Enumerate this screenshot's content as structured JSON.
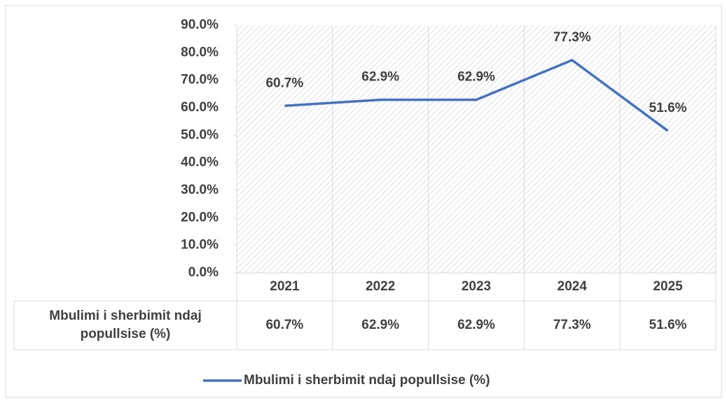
{
  "chart_data": {
    "type": "line",
    "categories": [
      "2021",
      "2022",
      "2023",
      "2024",
      "2025"
    ],
    "series": [
      {
        "name": "Mbulimi i sherbimit ndaj popullsise (%)",
        "color": "#4472c4",
        "values": [
          60.7,
          62.9,
          62.9,
          77.3,
          51.6
        ],
        "value_labels": [
          "60.7%",
          "62.9%",
          "62.9%",
          "77.3%",
          "51.6%"
        ]
      }
    ],
    "ylim": [
      0,
      90
    ],
    "yticks": [
      {
        "value": 0,
        "label": "0.0%"
      },
      {
        "value": 10,
        "label": "10.0%"
      },
      {
        "value": 20,
        "label": "20.0%"
      },
      {
        "value": 30,
        "label": "30.0%"
      },
      {
        "value": 40,
        "label": "40.0%"
      },
      {
        "value": 50,
        "label": "50.0%"
      },
      {
        "value": 60,
        "label": "60.0%"
      },
      {
        "value": 70,
        "label": "70.0%"
      },
      {
        "value": 80,
        "label": "80.0%"
      },
      {
        "value": 90,
        "label": "90.0%"
      }
    ],
    "legend": "bottom",
    "data_table": true
  }
}
